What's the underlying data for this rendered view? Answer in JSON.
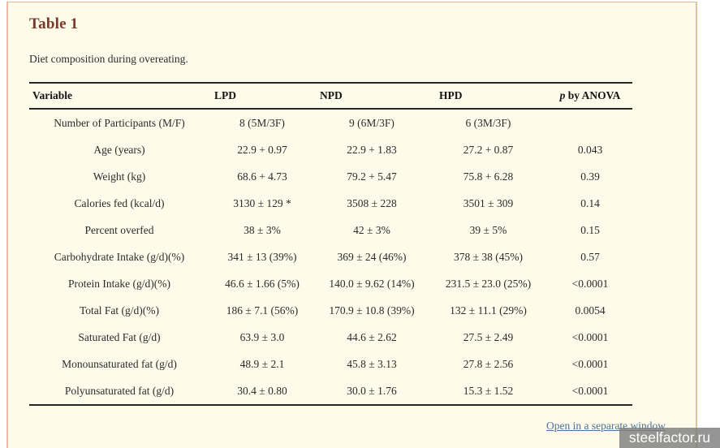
{
  "header": {
    "title": "Table 1",
    "caption": "Diet composition during overeating."
  },
  "table": {
    "columns": [
      {
        "key": "variable",
        "label": "Variable"
      },
      {
        "key": "lpd",
        "label": "LPD"
      },
      {
        "key": "npd",
        "label": "NPD"
      },
      {
        "key": "hpd",
        "label": "HPD"
      },
      {
        "key": "p-anova",
        "label": "p by ANOVA",
        "italic_prefix": "p"
      }
    ],
    "rows": [
      [
        "Number of Participants (M/F)",
        "8 (5M/3F)",
        "9 (6M/3F)",
        "6 (3M/3F)",
        ""
      ],
      [
        "Age (years)",
        "22.9 + 0.97",
        "22.9 + 1.83",
        "27.2 + 0.87",
        "0.043"
      ],
      [
        "Weight (kg)",
        "68.6 + 4.73",
        "79.2 + 5.47",
        "75.8 + 6.28",
        "0.39"
      ],
      [
        "Calories fed (kcal/d)",
        "3130 ± 129 *",
        "3508 ± 228",
        "3501 ± 309",
        "0.14"
      ],
      [
        "Percent overfed",
        "38 ± 3%",
        "42 ± 3%",
        "39 ± 5%",
        "0.15"
      ],
      [
        "Carbohydrate Intake (g/d)(%)",
        "341 ± 13 (39%)",
        "369 ± 24 (46%)",
        "378 ± 38 (45%)",
        "0.57"
      ],
      [
        "Protein Intake (g/d)(%)",
        "46.6 ± 1.66 (5%)",
        "140.0 ± 9.62 (14%)",
        "231.5 ± 23.0 (25%)",
        "<0.0001"
      ],
      [
        "Total Fat (g/d)(%)",
        "186 ± 7.1 (56%)",
        "170.9 ± 10.8 (39%)",
        "132 ± 11.1 (29%)",
        "0.0054"
      ],
      [
        "Saturated Fat (g/d)",
        "63.9 ± 3.0",
        "44.6 ± 2.62",
        "27.5 ± 2.49",
        "<0.0001"
      ],
      [
        "Monounsaturated fat (g/d)",
        "48.9 ± 2.1",
        "45.8 ± 3.13",
        "27.8 ± 2.56",
        "<0.0001"
      ],
      [
        "Polyunsaturated fat (g/d)",
        "30.4 ± 0.80",
        "30.0 ± 1.76",
        "15.3 ± 1.52",
        "<0.0001"
      ]
    ]
  },
  "footer": {
    "link_label": "Open in a separate window",
    "watermark": "steelfactor.ru"
  },
  "colors": {
    "panel_background": "#fffbea",
    "title_accent": "#77392a",
    "link_blue": "#4a7396",
    "panel_border_left": "#f0b8a6",
    "panel_border_right": "#ddc39e",
    "table_rule": "#252525",
    "watermark_background": "#7e7e7e"
  }
}
